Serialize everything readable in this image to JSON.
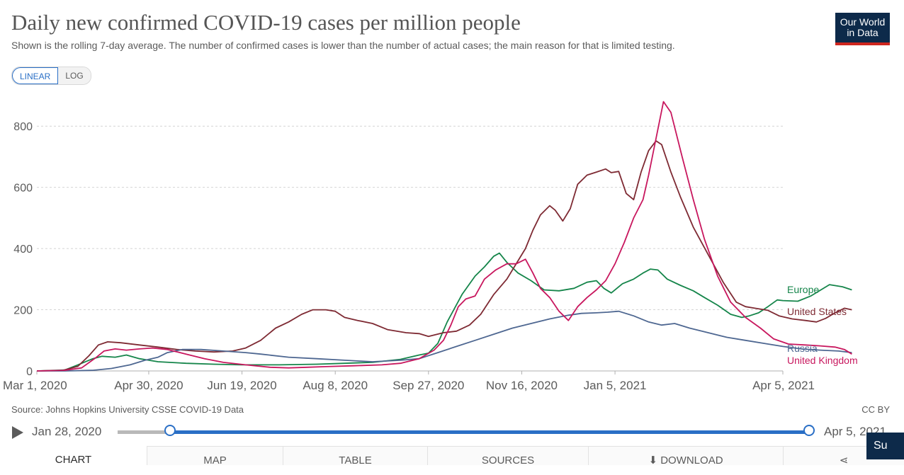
{
  "header": {
    "title": "Daily new confirmed COVID-19 cases per million people",
    "subtitle": "Shown is the rolling 7-day average. The number of confirmed cases is lower than the number of actual cases; the main reason for that is limited testing.",
    "logo_line1": "Our World",
    "logo_line2": "in Data"
  },
  "controls": {
    "linear_label": "LINEAR",
    "log_label": "LOG",
    "active_scale": "LINEAR"
  },
  "footer": {
    "source": "Source: Johns Hopkins University CSSE COVID-19 Data",
    "license": "CC BY"
  },
  "timeline": {
    "start_label": "Jan 28, 2020",
    "end_label": "Apr 5, 2021"
  },
  "tabs": [
    {
      "label": "CHART",
      "active": true
    },
    {
      "label": "MAP",
      "active": false
    },
    {
      "label": "TABLE",
      "active": false
    },
    {
      "label": "SOURCES",
      "active": false
    },
    {
      "label": "⬇ DOWNLOAD",
      "active": false
    }
  ],
  "share_label": "Su",
  "colors": {
    "europe": "#15854a",
    "united_states": "#7e2a33",
    "russia": "#4e6791",
    "united_kingdom": "#c8175e",
    "grid": "#d4d4d4",
    "accent": "#2a6fc6"
  },
  "chart_data": {
    "type": "line",
    "title": "Daily new confirmed COVID-19 cases per million people",
    "xlabel": "",
    "ylabel": "",
    "x_ticks": [
      "Mar 1, 2020",
      "Apr 30, 2020",
      "Jun 19, 2020",
      "Aug 8, 2020",
      "Sep 27, 2020",
      "Nov 16, 2020",
      "Jan 5, 2021",
      "Apr 5, 2021"
    ],
    "x_tick_days": [
      0,
      60,
      110,
      160,
      210,
      260,
      310,
      400
    ],
    "x_range_days": [
      0,
      400
    ],
    "ylim": [
      0,
      900
    ],
    "y_ticks": [
      0,
      200,
      400,
      600,
      800
    ],
    "grid": true,
    "legend": "right-end-labels",
    "series": [
      {
        "name": "Europe",
        "color": "#15854a",
        "points": [
          [
            0,
            0
          ],
          [
            15,
            3
          ],
          [
            22,
            20
          ],
          [
            30,
            40
          ],
          [
            35,
            48
          ],
          [
            42,
            45
          ],
          [
            48,
            52
          ],
          [
            55,
            40
          ],
          [
            65,
            30
          ],
          [
            80,
            25
          ],
          [
            95,
            22
          ],
          [
            110,
            20
          ],
          [
            130,
            20
          ],
          [
            150,
            22
          ],
          [
            165,
            25
          ],
          [
            180,
            28
          ],
          [
            195,
            38
          ],
          [
            205,
            52
          ],
          [
            210,
            58
          ],
          [
            215,
            90
          ],
          [
            220,
            160
          ],
          [
            228,
            250
          ],
          [
            235,
            310
          ],
          [
            240,
            340
          ],
          [
            245,
            375
          ],
          [
            248,
            385
          ],
          [
            252,
            355
          ],
          [
            258,
            320
          ],
          [
            265,
            295
          ],
          [
            272,
            265
          ],
          [
            280,
            262
          ],
          [
            288,
            270
          ],
          [
            295,
            290
          ],
          [
            300,
            295
          ],
          [
            304,
            270
          ],
          [
            308,
            255
          ],
          [
            314,
            285
          ],
          [
            320,
            300
          ],
          [
            325,
            320
          ],
          [
            329,
            333
          ],
          [
            333,
            330
          ],
          [
            338,
            300
          ],
          [
            345,
            280
          ],
          [
            352,
            262
          ],
          [
            358,
            240
          ],
          [
            365,
            215
          ],
          [
            372,
            185
          ],
          [
            378,
            175
          ],
          [
            382,
            180
          ],
          [
            387,
            190
          ],
          [
            392,
            210
          ],
          [
            397,
            232
          ],
          [
            400,
            230
          ],
          [
            408,
            228
          ],
          [
            415,
            245
          ],
          [
            425,
            282
          ],
          [
            432,
            275
          ],
          [
            437,
            265
          ]
        ]
      },
      {
        "name": "United States",
        "color": "#7e2a33",
        "points": [
          [
            0,
            0
          ],
          [
            14,
            2
          ],
          [
            22,
            15
          ],
          [
            28,
            50
          ],
          [
            33,
            85
          ],
          [
            38,
            95
          ],
          [
            45,
            92
          ],
          [
            55,
            85
          ],
          [
            65,
            78
          ],
          [
            75,
            70
          ],
          [
            85,
            65
          ],
          [
            95,
            62
          ],
          [
            105,
            65
          ],
          [
            112,
            75
          ],
          [
            120,
            100
          ],
          [
            128,
            140
          ],
          [
            135,
            160
          ],
          [
            142,
            185
          ],
          [
            148,
            200
          ],
          [
            155,
            200
          ],
          [
            160,
            195
          ],
          [
            165,
            175
          ],
          [
            172,
            165
          ],
          [
            180,
            155
          ],
          [
            188,
            135
          ],
          [
            198,
            125
          ],
          [
            205,
            122
          ],
          [
            210,
            113
          ],
          [
            218,
            125
          ],
          [
            225,
            130
          ],
          [
            232,
            150
          ],
          [
            238,
            185
          ],
          [
            245,
            250
          ],
          [
            252,
            300
          ],
          [
            258,
            360
          ],
          [
            262,
            400
          ],
          [
            266,
            460
          ],
          [
            270,
            510
          ],
          [
            275,
            540
          ],
          [
            278,
            525
          ],
          [
            282,
            490
          ],
          [
            286,
            530
          ],
          [
            290,
            610
          ],
          [
            295,
            640
          ],
          [
            300,
            650
          ],
          [
            305,
            660
          ],
          [
            308,
            648
          ],
          [
            312,
            652
          ],
          [
            316,
            580
          ],
          [
            320,
            560
          ],
          [
            324,
            650
          ],
          [
            328,
            720
          ],
          [
            332,
            752
          ],
          [
            335,
            740
          ],
          [
            340,
            650
          ],
          [
            345,
            570
          ],
          [
            352,
            470
          ],
          [
            360,
            380
          ],
          [
            368,
            290
          ],
          [
            375,
            225
          ],
          [
            380,
            210
          ],
          [
            385,
            205
          ],
          [
            392,
            198
          ],
          [
            398,
            180
          ],
          [
            405,
            170
          ],
          [
            412,
            165
          ],
          [
            418,
            160
          ],
          [
            423,
            172
          ],
          [
            428,
            190
          ],
          [
            433,
            205
          ],
          [
            437,
            200
          ]
        ]
      },
      {
        "name": "Russia",
        "color": "#4e6791",
        "points": [
          [
            0,
            0
          ],
          [
            15,
            0
          ],
          [
            30,
            2
          ],
          [
            40,
            8
          ],
          [
            50,
            20
          ],
          [
            58,
            35
          ],
          [
            65,
            45
          ],
          [
            70,
            60
          ],
          [
            78,
            70
          ],
          [
            88,
            70
          ],
          [
            100,
            65
          ],
          [
            112,
            60
          ],
          [
            120,
            55
          ],
          [
            135,
            45
          ],
          [
            150,
            40
          ],
          [
            165,
            35
          ],
          [
            180,
            30
          ],
          [
            195,
            35
          ],
          [
            205,
            40
          ],
          [
            215,
            60
          ],
          [
            225,
            80
          ],
          [
            235,
            100
          ],
          [
            245,
            120
          ],
          [
            255,
            140
          ],
          [
            265,
            155
          ],
          [
            275,
            170
          ],
          [
            285,
            182
          ],
          [
            292,
            188
          ],
          [
            300,
            190
          ],
          [
            306,
            192
          ],
          [
            312,
            195
          ],
          [
            320,
            180
          ],
          [
            328,
            160
          ],
          [
            335,
            150
          ],
          [
            342,
            155
          ],
          [
            350,
            140
          ],
          [
            360,
            125
          ],
          [
            370,
            110
          ],
          [
            380,
            100
          ],
          [
            390,
            90
          ],
          [
            400,
            80
          ],
          [
            410,
            72
          ],
          [
            420,
            68
          ],
          [
            430,
            65
          ],
          [
            437,
            60
          ]
        ]
      },
      {
        "name": "United Kingdom",
        "color": "#c8175e",
        "points": [
          [
            0,
            0
          ],
          [
            15,
            2
          ],
          [
            24,
            10
          ],
          [
            32,
            45
          ],
          [
            36,
            65
          ],
          [
            42,
            72
          ],
          [
            48,
            68
          ],
          [
            55,
            72
          ],
          [
            62,
            75
          ],
          [
            70,
            70
          ],
          [
            80,
            55
          ],
          [
            90,
            40
          ],
          [
            100,
            28
          ],
          [
            112,
            20
          ],
          [
            125,
            12
          ],
          [
            135,
            10
          ],
          [
            145,
            12
          ],
          [
            155,
            14
          ],
          [
            170,
            17
          ],
          [
            185,
            20
          ],
          [
            195,
            25
          ],
          [
            205,
            40
          ],
          [
            213,
            68
          ],
          [
            218,
            100
          ],
          [
            222,
            150
          ],
          [
            226,
            210
          ],
          [
            230,
            235
          ],
          [
            235,
            245
          ],
          [
            240,
            300
          ],
          [
            246,
            330
          ],
          [
            252,
            350
          ],
          [
            257,
            350
          ],
          [
            262,
            365
          ],
          [
            266,
            320
          ],
          [
            270,
            270
          ],
          [
            275,
            240
          ],
          [
            280,
            195
          ],
          [
            285,
            165
          ],
          [
            290,
            210
          ],
          [
            295,
            240
          ],
          [
            300,
            265
          ],
          [
            305,
            295
          ],
          [
            310,
            350
          ],
          [
            315,
            420
          ],
          [
            320,
            500
          ],
          [
            325,
            560
          ],
          [
            328,
            640
          ],
          [
            332,
            760
          ],
          [
            336,
            880
          ],
          [
            340,
            845
          ],
          [
            346,
            700
          ],
          [
            352,
            560
          ],
          [
            358,
            430
          ],
          [
            365,
            310
          ],
          [
            372,
            225
          ],
          [
            380,
            175
          ],
          [
            388,
            140
          ],
          [
            395,
            105
          ],
          [
            403,
            88
          ],
          [
            412,
            85
          ],
          [
            420,
            82
          ],
          [
            428,
            78
          ],
          [
            433,
            70
          ],
          [
            437,
            55
          ]
        ]
      }
    ],
    "end_labels": [
      {
        "text": "Europe",
        "series": "Europe"
      },
      {
        "text": "United States",
        "series": "United States"
      },
      {
        "text": "Russia",
        "series": "Russia"
      },
      {
        "text": "United Kingdom",
        "series": "United Kingdom"
      }
    ]
  }
}
